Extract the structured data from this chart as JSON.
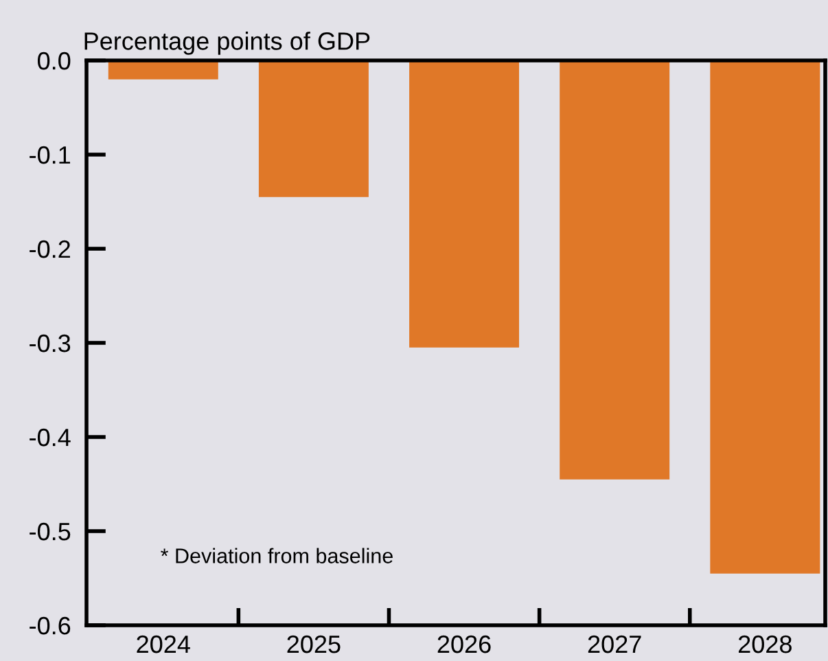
{
  "chart_data": {
    "type": "bar",
    "ylabel": "Percentage points of GDP",
    "categories": [
      "2024",
      "2025",
      "2026",
      "2027",
      "2028"
    ],
    "values": [
      -0.02,
      -0.145,
      -0.305,
      -0.445,
      -0.545
    ],
    "color": "#e07828",
    "ylim": [
      -0.6,
      0.0
    ],
    "yticks": [
      {
        "value": 0.0,
        "label": "0.0"
      },
      {
        "value": -0.1,
        "label": "-0.1"
      },
      {
        "value": -0.2,
        "label": "-0.2"
      },
      {
        "value": -0.3,
        "label": "-0.3"
      },
      {
        "value": -0.4,
        "label": "-0.4"
      },
      {
        "value": -0.5,
        "label": "-0.5"
      },
      {
        "value": -0.6,
        "label": "-0.6"
      }
    ],
    "grid": false,
    "annotations": [
      "* Deviation from baseline"
    ]
  }
}
